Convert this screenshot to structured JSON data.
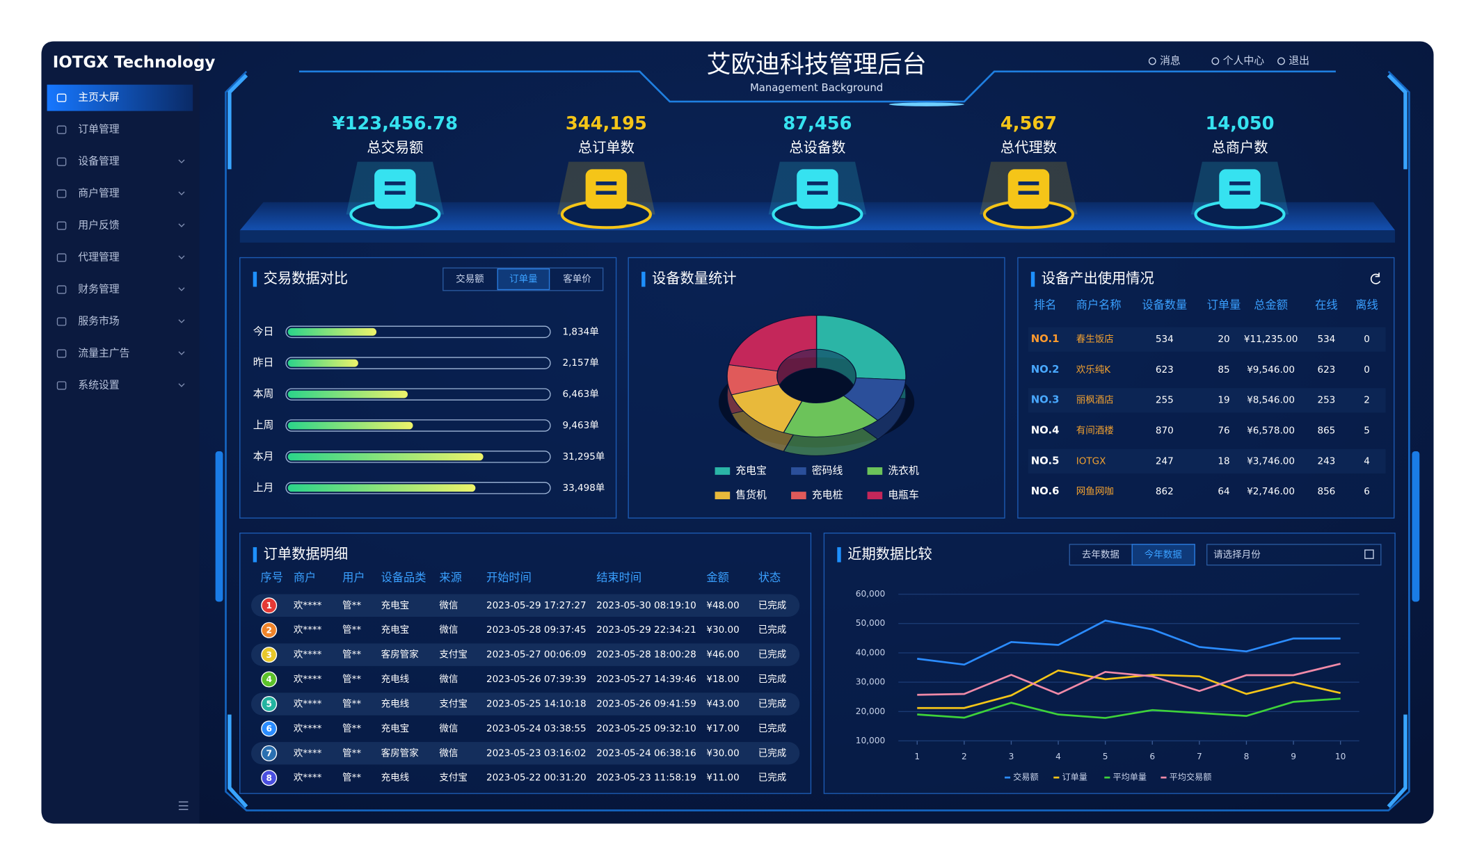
{
  "brand": "IOTGX Technology",
  "menu": [
    "主页大屏",
    "订单管理",
    "设备管理",
    "商户管理",
    "用户反馈",
    "代理管理",
    "财务管理",
    "服务市场",
    "流量主广告",
    "系统设置"
  ],
  "active_menu": 0,
  "header": {
    "title": "艾欧迪科技管理后台",
    "subtitle": "Management Background",
    "nav": [
      "消息",
      "个人中心",
      "退出"
    ]
  },
  "kpis": [
    {
      "value": "¥123,456.78",
      "label": "总交易额"
    },
    {
      "value": "344,195",
      "label": "总订单数"
    },
    {
      "value": "87,456",
      "label": "总设备数"
    },
    {
      "value": "4,567",
      "label": "总代理数"
    },
    {
      "value": "14,050",
      "label": "总商户数"
    }
  ],
  "trade": {
    "type": "bar",
    "title": "交易数据对比",
    "tabs": [
      "交易额",
      "订单量",
      "客单价"
    ],
    "active_tab": 1,
    "categories": [
      "今日",
      "昨日",
      "本周",
      "上周",
      "本月",
      "上月"
    ],
    "values": [
      1834,
      2157,
      6463,
      9463,
      31295,
      33498
    ],
    "value_labels": [
      "1,834单",
      "2,157单",
      "6,463单",
      "9,463单",
      "31,295单",
      "33,498单"
    ],
    "progress": [
      34,
      27,
      46,
      48,
      75,
      72
    ],
    "xlim": [
      0,
      100
    ]
  },
  "devices": {
    "type": "pie",
    "title": "设备数量统计",
    "categories": [
      "充电宝",
      "密码线",
      "洗衣机",
      "售货机",
      "充电桩",
      "电瓶车"
    ],
    "values": [
      26,
      12,
      18,
      14,
      8,
      22
    ],
    "colors": [
      "#2bb5a6",
      "#2b4f9a",
      "#6cc35a",
      "#e8b93b",
      "#e05a5a",
      "#c4275a"
    ]
  },
  "output": {
    "title": "设备产出使用情况",
    "columns": [
      "排名",
      "商户名称",
      "设备数量",
      "订单量",
      "总金额",
      "在线",
      "离线"
    ],
    "rows": [
      [
        "NO.1",
        "春生饭店",
        "534",
        "20",
        "¥11,235.00",
        "534",
        "0"
      ],
      [
        "NO.2",
        "欢乐纯K",
        "623",
        "85",
        "¥9,546.00",
        "623",
        "0"
      ],
      [
        "NO.3",
        "丽枫酒店",
        "255",
        "19",
        "¥8,546.00",
        "253",
        "2"
      ],
      [
        "NO.4",
        "有间酒楼",
        "870",
        "76",
        "¥6,578.00",
        "865",
        "5"
      ],
      [
        "NO.5",
        "IOTGX",
        "247",
        "18",
        "¥3,746.00",
        "243",
        "4"
      ],
      [
        "NO.6",
        "网鱼网咖",
        "862",
        "64",
        "¥2,746.00",
        "856",
        "6"
      ]
    ]
  },
  "orders": {
    "title": "订单数据明细",
    "columns": [
      "序号",
      "商户",
      "用户",
      "设备品类",
      "来源",
      "开始时间",
      "结束时间",
      "金额",
      "状态"
    ],
    "rows": [
      [
        "1",
        "欢****",
        "管**",
        "充电宝",
        "微信",
        "2023-05-29 17:27:27",
        "2023-05-30 08:19:10",
        "¥48.00",
        "已完成"
      ],
      [
        "2",
        "欢****",
        "管**",
        "充电宝",
        "微信",
        "2023-05-28 09:37:45",
        "2023-05-29 22:34:21",
        "¥30.00",
        "已完成"
      ],
      [
        "3",
        "欢****",
        "管**",
        "客房管家",
        "支付宝",
        "2023-05-27 00:06:09",
        "2023-05-28 18:00:28",
        "¥46.00",
        "已完成"
      ],
      [
        "4",
        "欢****",
        "管**",
        "充电线",
        "微信",
        "2023-05-26 07:39:39",
        "2023-05-27 14:39:46",
        "¥18.00",
        "已完成"
      ],
      [
        "5",
        "欢****",
        "管**",
        "充电线",
        "支付宝",
        "2023-05-25 14:10:18",
        "2023-05-26 09:41:59",
        "¥43.00",
        "已完成"
      ],
      [
        "6",
        "欢****",
        "管**",
        "充电宝",
        "微信",
        "2023-05-24 03:38:55",
        "2023-05-25 09:32:10",
        "¥17.00",
        "已完成"
      ],
      [
        "7",
        "欢****",
        "管**",
        "客房管家",
        "微信",
        "2023-05-23 03:16:02",
        "2023-05-24 06:38:16",
        "¥30.00",
        "已完成"
      ],
      [
        "8",
        "欢****",
        "管**",
        "充电线",
        "支付宝",
        "2023-05-22 00:31:20",
        "2023-05-23 11:58:19",
        "¥11.00",
        "已完成"
      ]
    ]
  },
  "recent": {
    "type": "line",
    "title": "近期数据比较",
    "tabs": [
      "去年数据",
      "今年数据"
    ],
    "active_tab": 1,
    "select_placeholder": "请选择月份",
    "x": [
      1,
      2,
      3,
      4,
      5,
      6,
      7,
      8,
      9,
      10
    ],
    "xlim": [
      1,
      10
    ],
    "xticks": [
      1,
      2,
      3,
      4,
      5,
      6,
      7,
      8,
      9,
      10
    ],
    "ylim": [
      10000,
      60000
    ],
    "yticks": [
      {
        "value": 10000,
        "label": "10,000"
      },
      {
        "value": 20000,
        "label": "20,000"
      },
      {
        "value": 30000,
        "label": "30,000"
      },
      {
        "value": 40000,
        "label": "40,000"
      },
      {
        "value": 50000,
        "label": "50,000"
      },
      {
        "value": 60000,
        "label": "60,000"
      }
    ],
    "grid": true,
    "series": [
      {
        "name": "交易额",
        "color": "#2b8cff",
        "values": [
          38000,
          36000,
          43700,
          42700,
          51000,
          48000,
          42000,
          40500,
          44900,
          44900
        ]
      },
      {
        "name": "订单量",
        "color": "#f5c518",
        "values": [
          21200,
          21200,
          25500,
          34000,
          31000,
          32500,
          32000,
          26000,
          30000,
          26300
        ]
      },
      {
        "name": "平均单量",
        "color": "#3ed23a",
        "values": [
          19000,
          17900,
          23000,
          19000,
          17800,
          20500,
          19500,
          18500,
          23300,
          24400
        ]
      },
      {
        "name": "平均交易额",
        "color": "#f08aa8",
        "values": [
          25700,
          26000,
          32500,
          26000,
          33500,
          32000,
          27000,
          32400,
          32400,
          36300
        ]
      }
    ]
  }
}
